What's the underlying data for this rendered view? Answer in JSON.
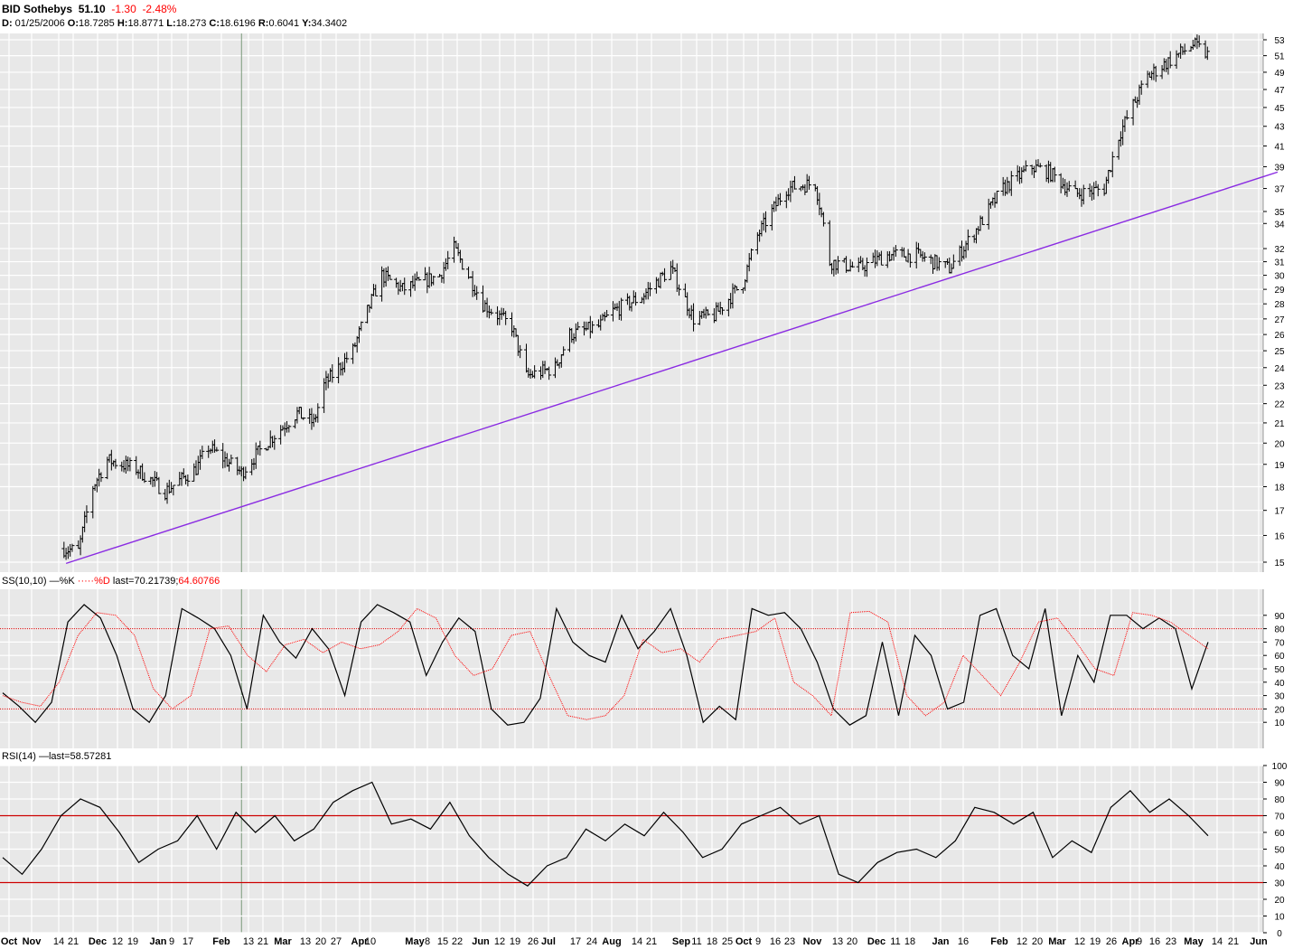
{
  "header": {
    "ticker": "BID",
    "name": "Sothebys",
    "last": "51.10",
    "change": "-1.30",
    "change_pct": "-2.48%",
    "d_label": "D:",
    "date": "01/25/2006",
    "o_label": "O:",
    "open": "18.7285",
    "h_label": "H:",
    "high": "18.8771",
    "l_label": "L:",
    "low": "18.273",
    "c_label": "C:",
    "close": "18.6196",
    "r_label": "R:",
    "range": "0.6041",
    "y_label": "Y:",
    "y": "34.3402"
  },
  "panels": {
    "stoch_label": "SS(10,10)",
    "stoch_k_legend": "%K",
    "stoch_d_legend": "%D",
    "stoch_last_prefix": "last=",
    "stoch_last_k": "70.21739",
    "stoch_last_d": "64.60766",
    "rsi_label": "RSI(14)",
    "rsi_last_prefix": "last=",
    "rsi_last": "58.57281"
  },
  "colors": {
    "background": "#e8e8e8",
    "grid": "#ffffff",
    "bars": "#000000",
    "trendline": "#8a2be2",
    "stoch_d": "#ff0000",
    "levels": "#cc0000",
    "cursor": "#7a9a7a"
  },
  "chart_data": [
    {
      "type": "ohlc",
      "title": "BID Sothebys",
      "y_scale": "log",
      "ylim": [
        15,
        53
      ],
      "y_ticks": [
        15,
        16,
        17,
        18,
        19,
        20,
        21,
        22,
        23,
        24,
        25,
        26,
        27,
        28,
        29,
        30,
        31,
        32,
        34,
        35,
        37,
        39,
        41,
        43,
        45,
        47,
        49,
        51,
        53
      ],
      "x_tick_labels": [
        "Oct",
        "Nov",
        "14",
        "21",
        "Dec",
        "12",
        "19",
        "Jan",
        "9",
        "17",
        "Feb",
        "13",
        "21",
        "Mar",
        "13",
        "20",
        "27",
        "Apr",
        "10",
        "May",
        "8",
        "15",
        "22",
        "Jun",
        "12",
        "19",
        "26",
        "Jul",
        "17",
        "24",
        "Aug",
        "14",
        "21",
        "Sep",
        "11",
        "18",
        "25",
        "Oct",
        "9",
        "16",
        "23",
        "Nov",
        "13",
        "20",
        "Dec",
        "11",
        "18",
        "Jan",
        "16",
        "Feb",
        "12",
        "20",
        "Mar",
        "12",
        "19",
        "26",
        "Apr",
        "9",
        "16",
        "23",
        "May",
        "14",
        "21",
        "Jun"
      ],
      "close_path": [
        {
          "date": "2005-10-31",
          "close": 15.5
        },
        {
          "date": "2005-11-07",
          "close": 15.4
        },
        {
          "date": "2005-11-14",
          "close": 18.0
        },
        {
          "date": "2005-11-21",
          "close": 19.2
        },
        {
          "date": "2005-12-05",
          "close": 18.8
        },
        {
          "date": "2005-12-19",
          "close": 17.8
        },
        {
          "date": "2006-01-03",
          "close": 18.8
        },
        {
          "date": "2006-01-09",
          "close": 19.8
        },
        {
          "date": "2006-01-25",
          "close": 18.62
        },
        {
          "date": "2006-02-06",
          "close": 20.0
        },
        {
          "date": "2006-02-21",
          "close": 21.5
        },
        {
          "date": "2006-03-01",
          "close": 21.0
        },
        {
          "date": "2006-03-06",
          "close": 23.0
        },
        {
          "date": "2006-03-20",
          "close": 25.0
        },
        {
          "date": "2006-04-03",
          "close": 30.0
        },
        {
          "date": "2006-04-13",
          "close": 29.0
        },
        {
          "date": "2006-05-01",
          "close": 30.0
        },
        {
          "date": "2006-05-08",
          "close": 32.0
        },
        {
          "date": "2006-05-22",
          "close": 28.0
        },
        {
          "date": "2006-06-05",
          "close": 26.5
        },
        {
          "date": "2006-06-12",
          "close": 23.5
        },
        {
          "date": "2006-06-26",
          "close": 24.0
        },
        {
          "date": "2006-07-03",
          "close": 26.0
        },
        {
          "date": "2006-07-17",
          "close": 26.5
        },
        {
          "date": "2006-07-24",
          "close": 27.5
        },
        {
          "date": "2006-08-07",
          "close": 28.5
        },
        {
          "date": "2006-08-21",
          "close": 30.5
        },
        {
          "date": "2006-09-01",
          "close": 27.0
        },
        {
          "date": "2006-09-11",
          "close": 27.2
        },
        {
          "date": "2006-09-25",
          "close": 29.5
        },
        {
          "date": "2006-10-02",
          "close": 33.0
        },
        {
          "date": "2006-10-16",
          "close": 37.0
        },
        {
          "date": "2006-10-30",
          "close": 37.5
        },
        {
          "date": "2006-11-06",
          "close": 31.0
        },
        {
          "date": "2006-11-20",
          "close": 30.5
        },
        {
          "date": "2006-12-04",
          "close": 31.5
        },
        {
          "date": "2006-12-18",
          "close": 31.5
        },
        {
          "date": "2007-01-03",
          "close": 30.5
        },
        {
          "date": "2007-01-16",
          "close": 33.5
        },
        {
          "date": "2007-01-29",
          "close": 37.0
        },
        {
          "date": "2007-02-12",
          "close": 39.0
        },
        {
          "date": "2007-02-20",
          "close": 38.5
        },
        {
          "date": "2007-03-05",
          "close": 36.5
        },
        {
          "date": "2007-03-19",
          "close": 37.0
        },
        {
          "date": "2007-03-26",
          "close": 42.0
        },
        {
          "date": "2007-04-09",
          "close": 48.5
        },
        {
          "date": "2007-04-23",
          "close": 51.0
        },
        {
          "date": "2007-05-01",
          "close": 52.4
        },
        {
          "date": "2007-05-08",
          "close": 51.1
        }
      ],
      "trendline": [
        {
          "date": "2005-11-07",
          "value": 15.1
        },
        {
          "date": "2007-06-11",
          "value": 38.5
        }
      ]
    },
    {
      "type": "line",
      "title": "SS(10,10)",
      "ylim": [
        0,
        100
      ],
      "y_ticks": [
        10,
        20,
        30,
        40,
        50,
        60,
        70,
        80,
        90
      ],
      "levels": [
        20,
        80
      ],
      "series": [
        {
          "name": "%K",
          "values": [
            32,
            22,
            10,
            25,
            85,
            98,
            88,
            60,
            20,
            10,
            30,
            95,
            88,
            80,
            60,
            20,
            90,
            70,
            58,
            80,
            65,
            30,
            85,
            98,
            92,
            85,
            45,
            70,
            88,
            78,
            20,
            8,
            10,
            28,
            95,
            70,
            60,
            55,
            90,
            65,
            78,
            95,
            60,
            10,
            22,
            12,
            95,
            90,
            92,
            80,
            55,
            20,
            8,
            15,
            70,
            15,
            75,
            60,
            20,
            25,
            90,
            95,
            60,
            50,
            95,
            15,
            60,
            40,
            90,
            90,
            80,
            88,
            80,
            35,
            70
          ]
        },
        {
          "name": "%D",
          "values": [
            30,
            25,
            22,
            40,
            75,
            92,
            90,
            75,
            35,
            20,
            30,
            80,
            82,
            60,
            48,
            68,
            72,
            62,
            70,
            65,
            68,
            78,
            95,
            88,
            60,
            45,
            50,
            75,
            78,
            45,
            15,
            12,
            15,
            30,
            72,
            62,
            65,
            55,
            72,
            75,
            78,
            88,
            40,
            30,
            15,
            92,
            93,
            85,
            30,
            15,
            25,
            60,
            45,
            30,
            55,
            85,
            88,
            70,
            50,
            45,
            92,
            90,
            85,
            75,
            65
          ]
        }
      ]
    },
    {
      "type": "line",
      "title": "RSI(14)",
      "ylim": [
        0,
        100
      ],
      "y_ticks": [
        0,
        10,
        20,
        30,
        40,
        50,
        60,
        70,
        80,
        90,
        100
      ],
      "levels": [
        30,
        70
      ],
      "series": [
        {
          "name": "RSI(14)",
          "values": [
            45,
            35,
            50,
            70,
            80,
            75,
            60,
            42,
            50,
            55,
            70,
            50,
            72,
            60,
            70,
            55,
            62,
            78,
            85,
            90,
            65,
            68,
            62,
            78,
            58,
            45,
            35,
            28,
            40,
            45,
            62,
            55,
            65,
            58,
            72,
            60,
            45,
            50,
            65,
            70,
            75,
            65,
            70,
            35,
            30,
            42,
            48,
            50,
            45,
            55,
            75,
            72,
            65,
            72,
            45,
            55,
            48,
            75,
            85,
            72,
            80,
            70,
            58
          ]
        }
      ]
    }
  ]
}
